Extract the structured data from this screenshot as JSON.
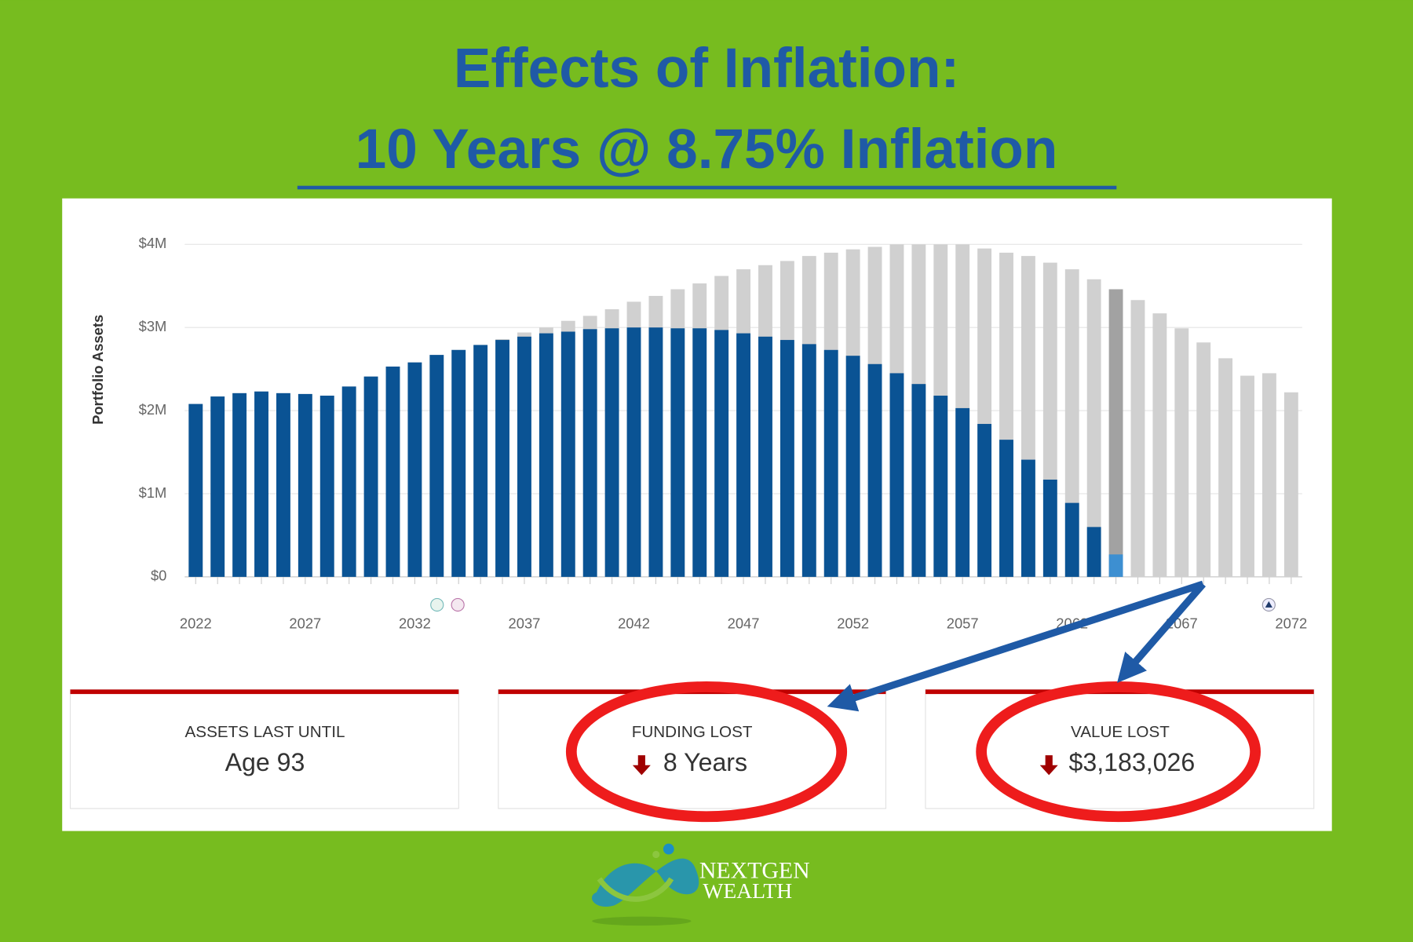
{
  "header": {
    "title": "Effects of Inflation:",
    "subtitle": "10 Years @ 8.75% Inflation"
  },
  "chart_data": {
    "type": "bar",
    "ylabel": "Portfolio Assets",
    "x": [
      2022,
      2023,
      2024,
      2025,
      2026,
      2027,
      2028,
      2029,
      2030,
      2031,
      2032,
      2033,
      2034,
      2035,
      2036,
      2037,
      2038,
      2039,
      2040,
      2041,
      2042,
      2043,
      2044,
      2045,
      2046,
      2047,
      2048,
      2049,
      2050,
      2051,
      2052,
      2053,
      2054,
      2055,
      2056,
      2057,
      2058,
      2059,
      2060,
      2061,
      2062,
      2063,
      2064,
      2065,
      2066,
      2067,
      2068,
      2069,
      2070,
      2071,
      2072
    ],
    "series": [
      {
        "color": "#d0d0d0",
        "values": [
          2080000,
          2170000,
          2210000,
          2230000,
          2210000,
          2200000,
          2180000,
          2290000,
          2410000,
          2530000,
          2580000,
          2670000,
          2730000,
          2790000,
          2860000,
          2940000,
          3000000,
          3080000,
          3140000,
          3220000,
          3310000,
          3380000,
          3460000,
          3530000,
          3620000,
          3700000,
          3750000,
          3800000,
          3860000,
          3900000,
          3940000,
          3970000,
          4000000,
          4000000,
          4000000,
          4000000,
          3950000,
          3900000,
          3860000,
          3780000,
          3700000,
          3580000,
          3460000,
          3330000,
          3170000,
          2990000,
          2820000,
          2630000,
          2420000,
          2450000,
          2220000
        ]
      },
      {
        "color": "#0a5394",
        "values": [
          2080000,
          2170000,
          2210000,
          2230000,
          2210000,
          2200000,
          2180000,
          2290000,
          2410000,
          2530000,
          2580000,
          2670000,
          2730000,
          2790000,
          2850000,
          2890000,
          2930000,
          2950000,
          2980000,
          2990000,
          3000000,
          3000000,
          2990000,
          2990000,
          2970000,
          2930000,
          2890000,
          2850000,
          2800000,
          2730000,
          2660000,
          2560000,
          2450000,
          2320000,
          2180000,
          2030000,
          1840000,
          1650000,
          1410000,
          1170000,
          890000,
          600000,
          270000,
          null,
          null,
          null,
          null,
          null,
          null,
          null,
          null
        ]
      }
    ],
    "highlight": {
      "x": 2064,
      "colors": [
        "#a2a2a2",
        "#3d8fd1"
      ]
    },
    "xlim": [
      2021.5,
      2072.5
    ],
    "xticks": [
      2022,
      2027,
      2032,
      2037,
      2042,
      2047,
      2052,
      2057,
      2062,
      2067,
      2072
    ],
    "ylim": [
      0,
      4000000
    ],
    "yticks": [
      {
        "value": 0,
        "label": "$0"
      },
      {
        "value": 1000000,
        "label": "$1M"
      },
      {
        "value": 2000000,
        "label": "$2M"
      },
      {
        "value": 3000000,
        "label": "$3M"
      },
      {
        "value": 4000000,
        "label": "$4M"
      }
    ],
    "grid": true
  },
  "cards": [
    {
      "label": "ASSETS LAST UNTIL",
      "value": "Age 93"
    },
    {
      "label": "FUNDING LOST",
      "value": "8 Years"
    },
    {
      "label": "VALUE LOST",
      "value": "$3,183,026"
    }
  ],
  "logo": {
    "line1": "NEXTGEN",
    "line2": "WEALTH"
  }
}
